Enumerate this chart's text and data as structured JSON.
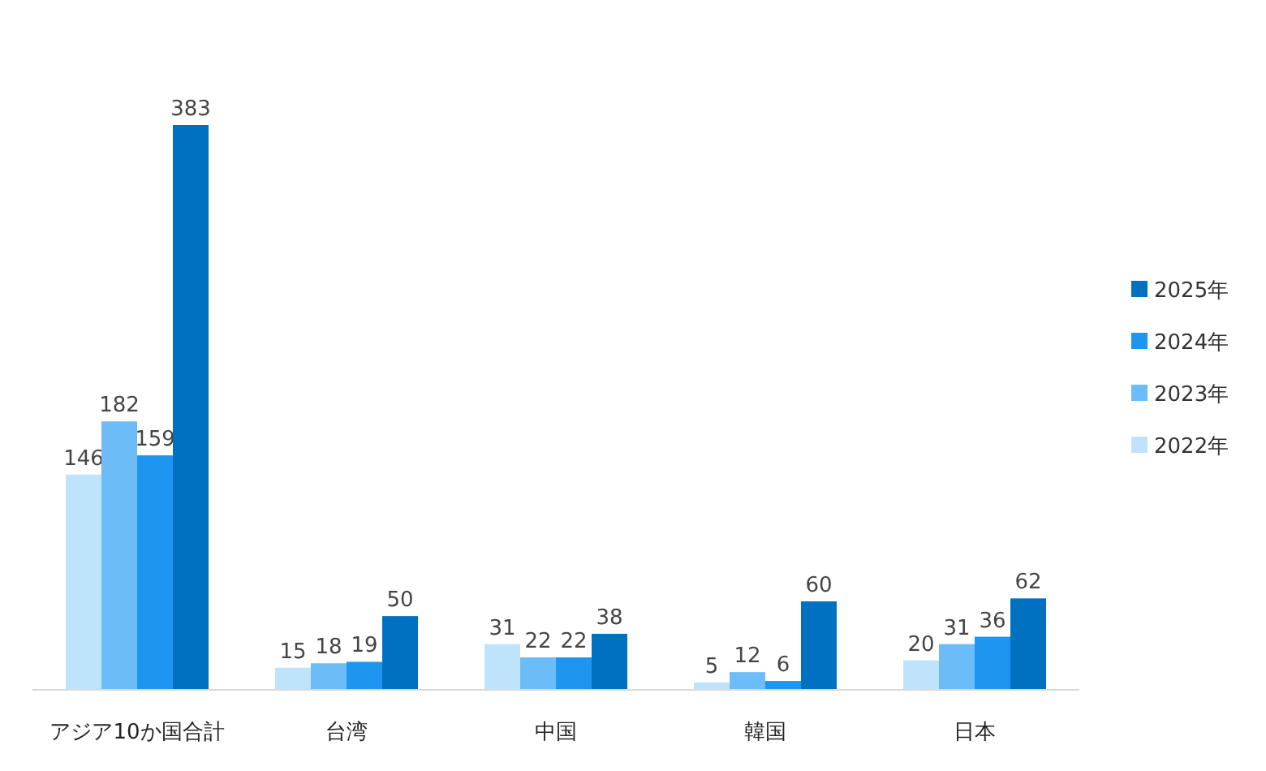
{
  "chart_data": {
    "type": "bar",
    "categories": [
      "アジア10か国合計",
      "台湾",
      "中国",
      "韓国",
      "日本"
    ],
    "series": [
      {
        "name": "2022年",
        "color": "#bfe3fb",
        "values": [
          146,
          15,
          31,
          5,
          20
        ]
      },
      {
        "name": "2023年",
        "color": "#6bbcf7",
        "values": [
          182,
          18,
          22,
          12,
          31
        ]
      },
      {
        "name": "2024年",
        "color": "#1e96f0",
        "values": [
          159,
          19,
          22,
          6,
          36
        ]
      },
      {
        "name": "2025年",
        "color": "#0070c0",
        "values": [
          383,
          50,
          38,
          60,
          62
        ]
      }
    ],
    "data_labels": true,
    "legend": "right"
  }
}
